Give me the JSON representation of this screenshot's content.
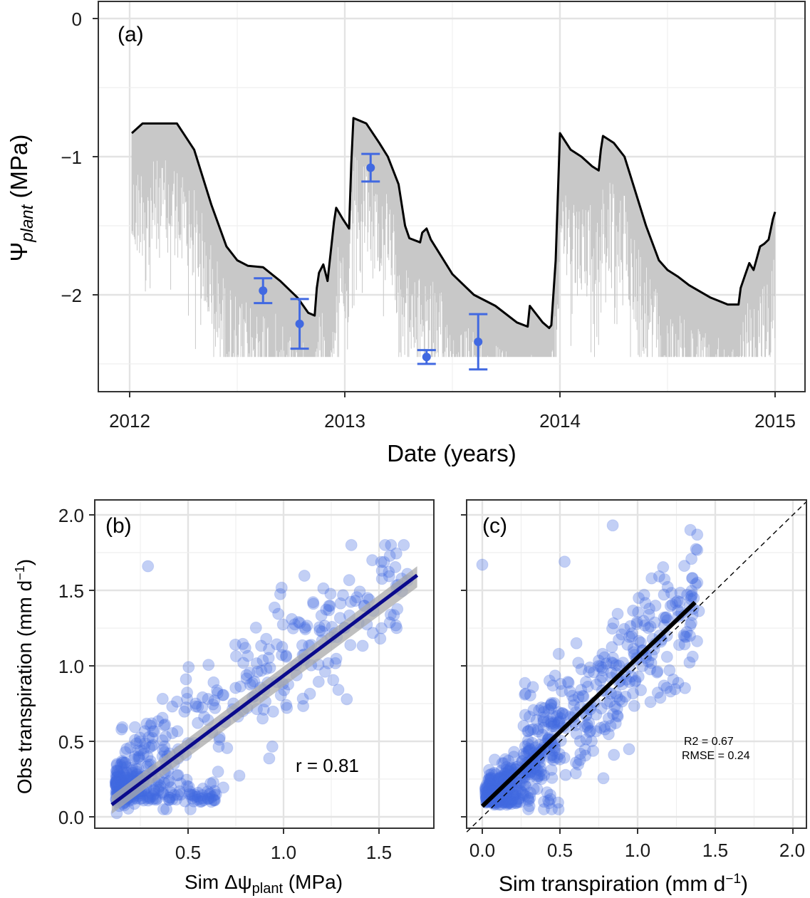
{
  "panels": {
    "a": {
      "label": "(a)",
      "xlabel": "Date (years)",
      "ylabel_symbol": "Ψ",
      "ylabel_sub": "plant",
      "ylabel_unit": " (MPa)",
      "xticks": [
        "2012",
        "2013",
        "2014",
        "2015"
      ],
      "yticks": [
        "0",
        "−1",
        "−2"
      ]
    },
    "b": {
      "label": "(b)",
      "xlabel_pre": "Sim Δψ",
      "xlabel_sub": "plant",
      "xlabel_unit": " (MPa)",
      "ylabel_pre": "Obs transpiration (mm d",
      "ylabel_sup": "−1",
      "ylabel_post": ")",
      "xticks": [
        "0.5",
        "1.0",
        "1.5"
      ],
      "yticks": [
        "0.0",
        "0.5",
        "1.0",
        "1.5",
        "2.0"
      ],
      "stat": "r = 0.81"
    },
    "c": {
      "label": "(c)",
      "xlabel_pre": "Sim transpiration (mm d",
      "xlabel_sup": "−1",
      "xlabel_post": ")",
      "xticks": [
        "0.0",
        "0.5",
        "1.0",
        "1.5",
        "2.0"
      ],
      "stat_r2": "R2 = 0.67",
      "stat_rmse": "RMSE = 0.24"
    }
  },
  "colors": {
    "simulated_daily": "#c8c8c8",
    "simulated_envelope": "#000000",
    "observed": "#4169e1",
    "fit_b": "#0a0a8c",
    "fit_c": "#000000",
    "ci_band": "#a9a9a9"
  },
  "chart_data": [
    {
      "type": "line",
      "panel": "a",
      "xlabel": "Date (years)",
      "ylabel": "Ψplant (MPa)",
      "xlim": [
        2011.98,
        2015.12
      ],
      "ylim": [
        -2.7,
        0.05
      ],
      "series": [
        {
          "kind": "line",
          "x": [
            2012.01,
            2012.06,
            2012.15,
            2012.22,
            2012.3,
            2012.38,
            2012.45,
            2012.5,
            2012.55,
            2012.62,
            2012.7,
            2012.78,
            2012.83,
            2012.86,
            2012.87,
            2012.88,
            2012.9,
            2012.92,
            2012.95,
            2012.96,
            2012.99,
            2013.02,
            2013.03,
            2013.04,
            2013.1,
            2013.16,
            2013.2,
            2013.25,
            2013.28,
            2013.3,
            2013.35,
            2013.36,
            2013.38,
            2013.4,
            2013.5,
            2013.6,
            2013.7,
            2013.8,
            2013.85,
            2013.86,
            2013.92,
            2013.95,
            2013.96,
            2013.98,
            2014.0,
            2014.05,
            2014.1,
            2014.15,
            2014.18,
            2014.19,
            2014.2,
            2014.25,
            2014.3,
            2014.33,
            2014.4,
            2014.46,
            2014.5,
            2014.55,
            2014.6,
            2014.7,
            2014.78,
            2014.83,
            2014.84,
            2014.86,
            2014.88,
            2014.9,
            2014.93,
            2014.95,
            2014.97,
            2014.99,
            2015.0
          ],
          "y": [
            -0.83,
            -0.76,
            -0.76,
            -0.76,
            -0.95,
            -1.35,
            -1.65,
            -1.75,
            -1.79,
            -1.8,
            -1.9,
            -2.02,
            -2.13,
            -2.15,
            -1.95,
            -1.84,
            -1.78,
            -1.9,
            -1.47,
            -1.37,
            -1.45,
            -1.52,
            -1.05,
            -0.72,
            -0.76,
            -0.9,
            -1.0,
            -1.2,
            -1.5,
            -1.59,
            -1.62,
            -1.55,
            -1.52,
            -1.6,
            -1.85,
            -2.0,
            -2.08,
            -2.2,
            -2.23,
            -2.08,
            -2.2,
            -2.24,
            -2.22,
            -1.75,
            -0.83,
            -0.95,
            -1.0,
            -1.07,
            -1.1,
            -0.95,
            -0.85,
            -0.9,
            -1.0,
            -1.15,
            -1.5,
            -1.75,
            -1.82,
            -1.87,
            -1.93,
            -2.02,
            -2.07,
            -2.07,
            -1.95,
            -1.86,
            -1.77,
            -1.82,
            -1.65,
            -1.63,
            -1.6,
            -1.45,
            -1.4
          ]
        },
        {
          "kind": "error",
          "x": [
            2012.62,
            2012.79,
            2013.12,
            2013.38,
            2013.62
          ],
          "y": [
            -1.97,
            -2.21,
            -1.08,
            -2.45,
            -2.34
          ],
          "err": [
            0.09,
            0.18,
            0.1,
            0.05,
            0.2
          ]
        }
      ]
    },
    {
      "type": "scatter",
      "panel": "b",
      "xlabel": "Sim Δψplant (MPa)",
      "ylabel": "Obs transpiration (mm d−1)",
      "xlim": [
        0.05,
        1.75
      ],
      "ylim": [
        -0.05,
        2.05
      ],
      "fit": {
        "x": [
          0.1,
          1.7
        ],
        "y": [
          0.08,
          1.6
        ]
      },
      "ci_band": {
        "x": [
          0.1,
          1.7
        ],
        "lower": [
          0.02,
          1.52
        ],
        "upper": [
          0.14,
          1.66
        ]
      },
      "stat": "r = 0.81"
    },
    {
      "type": "scatter",
      "panel": "c",
      "xlabel": "Sim transpiration (mm d−1)",
      "xlim": [
        -0.1,
        2.1
      ],
      "ylim": [
        -0.05,
        2.05
      ],
      "fit": {
        "x": [
          0.0,
          1.37
        ],
        "y": [
          0.07,
          1.42
        ]
      },
      "identity_line": true,
      "stat": "R2 = 0.67, RMSE = 0.24"
    }
  ]
}
